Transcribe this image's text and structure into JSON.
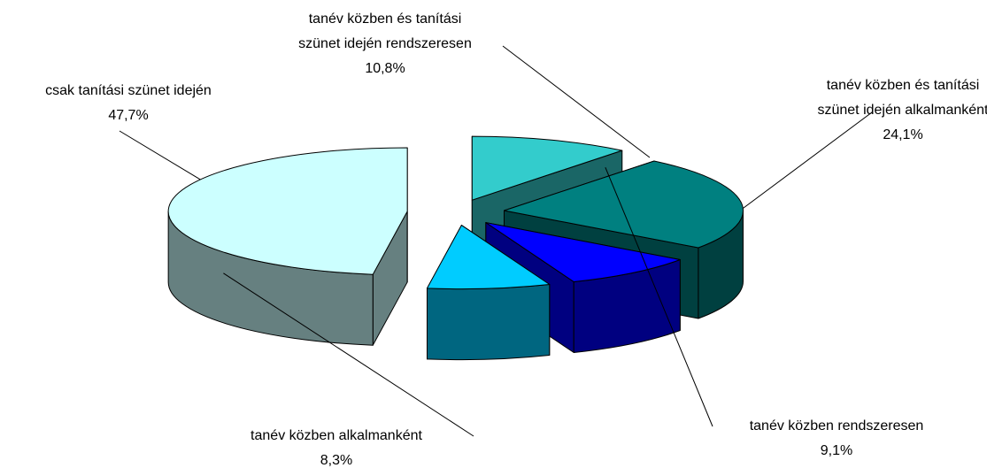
{
  "chart_data": {
    "type": "pie3d",
    "categories": [
      "tanév közben és tanítási szünet idején rendszeresen",
      "tanév közben és tanítási szünet idején alkalmanként",
      "tanév közben rendszeresen",
      "tanév közben alkalmanként",
      "csak tanítási szünet idején"
    ],
    "values": [
      10.8,
      24.1,
      9.1,
      8.3,
      47.7
    ],
    "value_labels": [
      "10,8%",
      "24,1%",
      "9,1%",
      "8,3%",
      "47,7%"
    ],
    "colors": [
      "#33CCCC",
      "#008080",
      "#0000FF",
      "#00CCFF",
      "#CCFFFF"
    ]
  }
}
